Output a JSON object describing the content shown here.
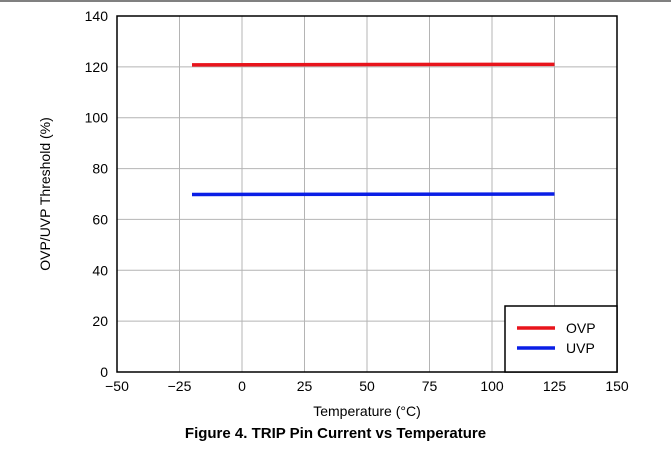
{
  "chart_data": {
    "type": "line",
    "xlabel": "Temperature (°C)",
    "ylabel": "OVP/UVP Threshold (%)",
    "xlim": [
      -50,
      150
    ],
    "ylim": [
      0,
      140
    ],
    "xticks": [
      -50,
      -25,
      0,
      25,
      50,
      75,
      100,
      125,
      150
    ],
    "xtick_labels": [
      "−50",
      "−25",
      "0",
      "25",
      "50",
      "75",
      "100",
      "125",
      "150"
    ],
    "yticks": [
      0,
      20,
      40,
      60,
      80,
      100,
      120,
      140
    ],
    "ytick_labels": [
      "0",
      "20",
      "40",
      "60",
      "80",
      "100",
      "120",
      "140"
    ],
    "grid": true,
    "legend_position": "bottom-right",
    "series": [
      {
        "name": "OVP",
        "color": "#e8141c",
        "x": [
          -20,
          125
        ],
        "y": [
          120.8,
          121.0
        ]
      },
      {
        "name": "UVP",
        "color": "#0a1ee6",
        "x": [
          -20,
          125
        ],
        "y": [
          69.8,
          70.0
        ]
      }
    ]
  },
  "caption": "Figure 4. TRIP Pin Current vs Temperature"
}
